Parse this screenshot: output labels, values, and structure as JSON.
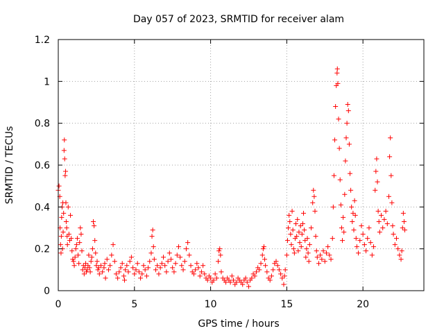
{
  "chart_data": {
    "type": "scatter",
    "title": "Day 057 of 2023, SRMTID for receiver alam",
    "xlabel": "GPS time / hours",
    "ylabel": "SRMTID / TECUs",
    "xlim": [
      0,
      24
    ],
    "ylim": [
      0,
      1.2
    ],
    "xticks": [
      0,
      5,
      10,
      15,
      20
    ],
    "xtick_labels": [
      "0",
      "5",
      "10",
      "15",
      "20"
    ],
    "yticks": [
      0,
      0.2,
      0.4,
      0.6,
      0.8,
      1.0,
      1.2
    ],
    "ytick_labels": [
      "0",
      "0.2",
      "0.4",
      "0.6",
      "0.8",
      "1",
      "1.2"
    ],
    "grid": true,
    "marker": "+",
    "color": "#ff0000",
    "series": [
      {
        "name": "SRMTID",
        "points": [
          [
            0.0,
            0.48
          ],
          [
            0.05,
            0.5
          ],
          [
            0.1,
            0.45
          ],
          [
            0.12,
            0.3
          ],
          [
            0.15,
            0.22
          ],
          [
            0.18,
            0.18
          ],
          [
            0.2,
            0.26
          ],
          [
            0.22,
            0.35
          ],
          [
            0.25,
            0.4
          ],
          [
            0.28,
            0.2
          ],
          [
            0.3,
            0.42
          ],
          [
            0.32,
            0.28
          ],
          [
            0.35,
            0.37
          ],
          [
            0.38,
            0.67
          ],
          [
            0.4,
            0.72
          ],
          [
            0.42,
            0.63
          ],
          [
            0.45,
            0.55
          ],
          [
            0.48,
            0.57
          ],
          [
            0.5,
            0.42
          ],
          [
            0.52,
            0.33
          ],
          [
            0.55,
            0.3
          ],
          [
            0.58,
            0.26
          ],
          [
            0.6,
            0.22
          ],
          [
            0.65,
            0.4
          ],
          [
            0.7,
            0.27
          ],
          [
            0.75,
            0.24
          ],
          [
            0.8,
            0.36
          ],
          [
            0.85,
            0.25
          ],
          [
            0.9,
            0.19
          ],
          [
            0.95,
            0.15
          ],
          [
            1.0,
            0.14
          ],
          [
            1.05,
            0.12
          ],
          [
            1.1,
            0.16
          ],
          [
            1.15,
            0.2
          ],
          [
            1.2,
            0.22
          ],
          [
            1.25,
            0.25
          ],
          [
            1.3,
            0.17
          ],
          [
            1.35,
            0.13
          ],
          [
            1.4,
            0.23
          ],
          [
            1.45,
            0.3
          ],
          [
            1.5,
            0.27
          ],
          [
            1.55,
            0.19
          ],
          [
            1.6,
            0.1
          ],
          [
            1.65,
            0.12
          ],
          [
            1.7,
            0.08
          ],
          [
            1.75,
            0.11
          ],
          [
            1.8,
            0.13
          ],
          [
            1.85,
            0.09
          ],
          [
            1.9,
            0.1
          ],
          [
            1.95,
            0.12
          ],
          [
            2.0,
            0.17
          ],
          [
            2.05,
            0.11
          ],
          [
            2.1,
            0.09
          ],
          [
            2.15,
            0.14
          ],
          [
            2.2,
            0.16
          ],
          [
            2.25,
            0.2
          ],
          [
            2.3,
            0.33
          ],
          [
            2.35,
            0.31
          ],
          [
            2.4,
            0.24
          ],
          [
            2.45,
            0.18
          ],
          [
            2.5,
            0.12
          ],
          [
            2.55,
            0.14
          ],
          [
            2.6,
            0.1
          ],
          [
            2.65,
            0.11
          ],
          [
            2.7,
            0.08
          ],
          [
            2.8,
            0.12
          ],
          [
            2.9,
            0.09
          ],
          [
            3.0,
            0.11
          ],
          [
            3.05,
            0.13
          ],
          [
            3.1,
            0.06
          ],
          [
            3.2,
            0.15
          ],
          [
            3.3,
            0.1
          ],
          [
            3.4,
            0.12
          ],
          [
            3.5,
            0.17
          ],
          [
            3.6,
            0.22
          ],
          [
            3.7,
            0.14
          ],
          [
            3.8,
            0.08
          ],
          [
            3.9,
            0.06
          ],
          [
            4.0,
            0.09
          ],
          [
            4.1,
            0.11
          ],
          [
            4.2,
            0.13
          ],
          [
            4.3,
            0.07
          ],
          [
            4.35,
            0.05
          ],
          [
            4.4,
            0.1
          ],
          [
            4.5,
            0.12
          ],
          [
            4.6,
            0.09
          ],
          [
            4.7,
            0.14
          ],
          [
            4.8,
            0.16
          ],
          [
            4.9,
            0.11
          ],
          [
            5.0,
            0.08
          ],
          [
            5.1,
            0.1
          ],
          [
            5.2,
            0.13
          ],
          [
            5.3,
            0.09
          ],
          [
            5.4,
            0.06
          ],
          [
            5.5,
            0.08
          ],
          [
            5.6,
            0.12
          ],
          [
            5.7,
            0.1
          ],
          [
            5.8,
            0.07
          ],
          [
            5.9,
            0.11
          ],
          [
            6.0,
            0.14
          ],
          [
            6.1,
            0.18
          ],
          [
            6.15,
            0.26
          ],
          [
            6.2,
            0.29
          ],
          [
            6.25,
            0.21
          ],
          [
            6.3,
            0.15
          ],
          [
            6.4,
            0.1
          ],
          [
            6.5,
            0.12
          ],
          [
            6.6,
            0.08
          ],
          [
            6.7,
            0.11
          ],
          [
            6.8,
            0.13
          ],
          [
            6.9,
            0.16
          ],
          [
            7.0,
            0.12
          ],
          [
            7.1,
            0.09
          ],
          [
            7.2,
            0.14
          ],
          [
            7.3,
            0.18
          ],
          [
            7.4,
            0.15
          ],
          [
            7.5,
            0.11
          ],
          [
            7.6,
            0.09
          ],
          [
            7.7,
            0.13
          ],
          [
            7.8,
            0.17
          ],
          [
            7.9,
            0.21
          ],
          [
            8.0,
            0.16
          ],
          [
            8.1,
            0.12
          ],
          [
            8.2,
            0.1
          ],
          [
            8.3,
            0.14
          ],
          [
            8.4,
            0.2
          ],
          [
            8.5,
            0.23
          ],
          [
            8.6,
            0.17
          ],
          [
            8.7,
            0.12
          ],
          [
            8.8,
            0.09
          ],
          [
            8.9,
            0.08
          ],
          [
            9.0,
            0.1
          ],
          [
            9.1,
            0.13
          ],
          [
            9.2,
            0.11
          ],
          [
            9.3,
            0.07
          ],
          [
            9.4,
            0.09
          ],
          [
            9.5,
            0.12
          ],
          [
            9.6,
            0.08
          ],
          [
            9.7,
            0.06
          ],
          [
            9.8,
            0.05
          ],
          [
            9.9,
            0.07
          ],
          [
            10.0,
            0.06
          ],
          [
            10.1,
            0.04
          ],
          [
            10.2,
            0.05
          ],
          [
            10.3,
            0.08
          ],
          [
            10.4,
            0.06
          ],
          [
            10.5,
            0.14
          ],
          [
            10.55,
            0.19
          ],
          [
            10.6,
            0.2
          ],
          [
            10.65,
            0.17
          ],
          [
            10.7,
            0.09
          ],
          [
            10.8,
            0.06
          ],
          [
            10.9,
            0.05
          ],
          [
            11.0,
            0.04
          ],
          [
            11.1,
            0.06
          ],
          [
            11.2,
            0.05
          ],
          [
            11.3,
            0.04
          ],
          [
            11.4,
            0.07
          ],
          [
            11.5,
            0.05
          ],
          [
            11.6,
            0.03
          ],
          [
            11.7,
            0.04
          ],
          [
            11.8,
            0.06
          ],
          [
            11.9,
            0.05
          ],
          [
            12.0,
            0.04
          ],
          [
            12.1,
            0.03
          ],
          [
            12.2,
            0.05
          ],
          [
            12.3,
            0.06
          ],
          [
            12.4,
            0.04
          ],
          [
            12.5,
            0.02
          ],
          [
            12.6,
            0.05
          ],
          [
            12.7,
            0.06
          ],
          [
            12.8,
            0.08
          ],
          [
            12.9,
            0.07
          ],
          [
            13.0,
            0.09
          ],
          [
            13.1,
            0.11
          ],
          [
            13.2,
            0.1
          ],
          [
            13.3,
            0.13
          ],
          [
            13.4,
            0.17
          ],
          [
            13.45,
            0.2
          ],
          [
            13.5,
            0.21
          ],
          [
            13.55,
            0.15
          ],
          [
            13.6,
            0.12
          ],
          [
            13.7,
            0.09
          ],
          [
            13.8,
            0.06
          ],
          [
            13.9,
            0.05
          ],
          [
            14.0,
            0.07
          ],
          [
            14.1,
            0.1
          ],
          [
            14.2,
            0.13
          ],
          [
            14.3,
            0.14
          ],
          [
            14.4,
            0.12
          ],
          [
            14.5,
            0.1
          ],
          [
            14.6,
            0.08
          ],
          [
            14.7,
            0.06
          ],
          [
            14.8,
            0.03
          ],
          [
            14.85,
            0.07
          ],
          [
            14.9,
            0.1
          ],
          [
            15.0,
            0.17
          ],
          [
            15.05,
            0.24
          ],
          [
            15.1,
            0.3
          ],
          [
            15.15,
            0.36
          ],
          [
            15.2,
            0.33
          ],
          [
            15.25,
            0.27
          ],
          [
            15.3,
            0.22
          ],
          [
            15.35,
            0.38
          ],
          [
            15.4,
            0.29
          ],
          [
            15.45,
            0.2
          ],
          [
            15.5,
            0.18
          ],
          [
            15.55,
            0.25
          ],
          [
            15.6,
            0.32
          ],
          [
            15.65,
            0.26
          ],
          [
            15.7,
            0.34
          ],
          [
            15.75,
            0.19
          ],
          [
            15.8,
            0.28
          ],
          [
            15.85,
            0.23
          ],
          [
            15.9,
            0.31
          ],
          [
            15.95,
            0.21
          ],
          [
            16.0,
            0.27
          ],
          [
            16.05,
            0.32
          ],
          [
            16.1,
            0.37
          ],
          [
            16.15,
            0.29
          ],
          [
            16.2,
            0.24
          ],
          [
            16.25,
            0.16
          ],
          [
            16.3,
            0.2
          ],
          [
            16.35,
            0.25
          ],
          [
            16.4,
            0.18
          ],
          [
            16.45,
            0.14
          ],
          [
            16.5,
            0.22
          ],
          [
            16.6,
            0.3
          ],
          [
            16.7,
            0.42
          ],
          [
            16.75,
            0.48
          ],
          [
            16.8,
            0.45
          ],
          [
            16.85,
            0.38
          ],
          [
            16.9,
            0.26
          ],
          [
            16.95,
            0.19
          ],
          [
            17.0,
            0.16
          ],
          [
            17.1,
            0.13
          ],
          [
            17.2,
            0.17
          ],
          [
            17.3,
            0.15
          ],
          [
            17.4,
            0.19
          ],
          [
            17.5,
            0.14
          ],
          [
            17.6,
            0.18
          ],
          [
            17.7,
            0.21
          ],
          [
            17.8,
            0.17
          ],
          [
            17.9,
            0.15
          ],
          [
            18.0,
            0.25
          ],
          [
            18.05,
            0.4
          ],
          [
            18.1,
            0.55
          ],
          [
            18.15,
            0.72
          ],
          [
            18.2,
            0.88
          ],
          [
            18.25,
            0.98
          ],
          [
            18.3,
            1.04
          ],
          [
            18.32,
            1.06
          ],
          [
            18.35,
            0.99
          ],
          [
            18.4,
            0.82
          ],
          [
            18.45,
            0.68
          ],
          [
            18.5,
            0.53
          ],
          [
            18.55,
            0.41
          ],
          [
            18.6,
            0.3
          ],
          [
            18.65,
            0.24
          ],
          [
            18.7,
            0.35
          ],
          [
            18.75,
            0.28
          ],
          [
            18.8,
            0.46
          ],
          [
            18.85,
            0.62
          ],
          [
            18.9,
            0.73
          ],
          [
            18.95,
            0.8
          ],
          [
            19.0,
            0.89
          ],
          [
            19.05,
            0.86
          ],
          [
            19.1,
            0.7
          ],
          [
            19.15,
            0.56
          ],
          [
            19.2,
            0.48
          ],
          [
            19.25,
            0.4
          ],
          [
            19.3,
            0.33
          ],
          [
            19.35,
            0.37
          ],
          [
            19.4,
            0.29
          ],
          [
            19.45,
            0.43
          ],
          [
            19.5,
            0.36
          ],
          [
            19.55,
            0.25
          ],
          [
            19.6,
            0.21
          ],
          [
            19.7,
            0.18
          ],
          [
            19.8,
            0.24
          ],
          [
            19.9,
            0.31
          ],
          [
            20.0,
            0.27
          ],
          [
            20.1,
            0.22
          ],
          [
            20.2,
            0.19
          ],
          [
            20.3,
            0.25
          ],
          [
            20.4,
            0.3
          ],
          [
            20.5,
            0.23
          ],
          [
            20.6,
            0.17
          ],
          [
            20.7,
            0.21
          ],
          [
            20.8,
            0.48
          ],
          [
            20.85,
            0.57
          ],
          [
            20.9,
            0.63
          ],
          [
            20.95,
            0.52
          ],
          [
            21.0,
            0.38
          ],
          [
            21.05,
            0.33
          ],
          [
            21.1,
            0.28
          ],
          [
            21.2,
            0.36
          ],
          [
            21.3,
            0.3
          ],
          [
            21.4,
            0.34
          ],
          [
            21.5,
            0.38
          ],
          [
            21.6,
            0.32
          ],
          [
            21.7,
            0.45
          ],
          [
            21.75,
            0.64
          ],
          [
            21.8,
            0.73
          ],
          [
            21.85,
            0.55
          ],
          [
            21.9,
            0.42
          ],
          [
            21.95,
            0.31
          ],
          [
            22.0,
            0.27
          ],
          [
            22.1,
            0.22
          ],
          [
            22.2,
            0.25
          ],
          [
            22.3,
            0.2
          ],
          [
            22.4,
            0.17
          ],
          [
            22.5,
            0.15
          ],
          [
            22.55,
            0.19
          ],
          [
            22.6,
            0.3
          ],
          [
            22.65,
            0.37
          ],
          [
            22.7,
            0.33
          ],
          [
            22.75,
            0.29
          ]
        ]
      }
    ]
  }
}
